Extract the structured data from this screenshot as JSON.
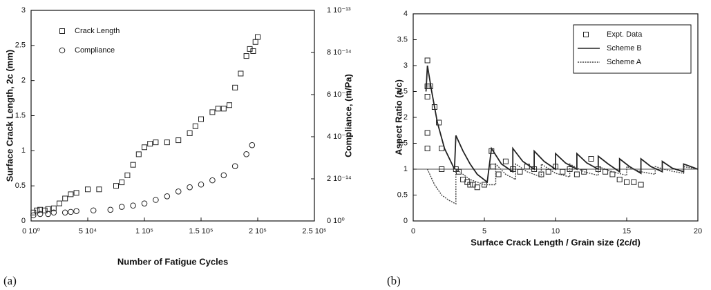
{
  "chart_data": [
    {
      "type": "scatter",
      "xlabel": "Number of Fatigue Cycles",
      "ylabel": "Surface Crack Length, 2c (mm)",
      "y2label": "Compliance, (m/Pa)",
      "caption": "(a)",
      "xlim": [
        0,
        250000
      ],
      "xticks": [
        {
          "value": 0,
          "label": "0 10⁰"
        },
        {
          "value": 50000,
          "label": "5 10⁴"
        },
        {
          "value": 100000,
          "label": "1 10⁵"
        },
        {
          "value": 150000,
          "label": "1.5 10⁵"
        },
        {
          "value": 200000,
          "label": "2 10⁵"
        },
        {
          "value": 250000,
          "label": "2.5 10⁵"
        }
      ],
      "ylim": [
        0,
        3
      ],
      "yticks": [
        0,
        0.5,
        1,
        1.5,
        2,
        2.5,
        3
      ],
      "y2lim": [
        0,
        1e-13
      ],
      "y2ticks": [
        {
          "value": 0,
          "label": "0 10⁰"
        },
        {
          "value": 2e-14,
          "label": "2 10⁻¹⁴"
        },
        {
          "value": 4e-14,
          "label": "4 10⁻¹⁴"
        },
        {
          "value": 6e-14,
          "label": "6 10⁻¹⁴"
        },
        {
          "value": 8e-14,
          "label": "8 10⁻¹⁴"
        },
        {
          "value": 1e-13,
          "label": "1 10⁻¹³"
        }
      ],
      "legend": "upper left",
      "series": [
        {
          "name": "Crack Length",
          "color": "#222222",
          "marker": "square",
          "x": [
            2000,
            5000,
            8000,
            12000,
            15000,
            20000,
            25000,
            30000,
            35000,
            40000,
            50000,
            60000,
            75000,
            80000,
            85000,
            90000,
            95000,
            100000,
            105000,
            110000,
            120000,
            130000,
            140000,
            145000,
            150000,
            160000,
            165000,
            170000,
            175000,
            180000,
            185000,
            190000,
            193000,
            196000,
            198000,
            200000
          ],
          "values": [
            0.12,
            0.15,
            0.16,
            0.15,
            0.17,
            0.18,
            0.25,
            0.32,
            0.38,
            0.4,
            0.45,
            0.45,
            0.5,
            0.55,
            0.65,
            0.8,
            0.95,
            1.05,
            1.1,
            1.12,
            1.12,
            1.15,
            1.25,
            1.35,
            1.45,
            1.55,
            1.6,
            1.6,
            1.65,
            1.9,
            2.1,
            2.35,
            2.45,
            2.42,
            2.55,
            2.62
          ]
        },
        {
          "name": "Compliance",
          "color": "#222222",
          "marker": "circle",
          "axis": "y2",
          "x": [
            2000,
            8000,
            15000,
            20000,
            30000,
            35000,
            40000,
            55000,
            70000,
            80000,
            90000,
            100000,
            110000,
            120000,
            130000,
            140000,
            150000,
            160000,
            170000,
            180000,
            190000,
            195000
          ],
          "values": [
            2.7e-15,
            3.3e-15,
            3.3e-15,
            4e-15,
            4e-15,
            4.3e-15,
            4.7e-15,
            5e-15,
            5.3e-15,
            6.7e-15,
            7.3e-15,
            8.3e-15,
            1e-14,
            1.17e-14,
            1.4e-14,
            1.6e-14,
            1.73e-14,
            1.93e-14,
            2.17e-14,
            2.6e-14,
            3.17e-14,
            3.6e-14
          ]
        }
      ]
    },
    {
      "type": "line",
      "xlabel": "Surface Crack Length / Grain size    (2c/d)",
      "ylabel": "Aspect Ratio   (a/c)",
      "caption": "(b)",
      "xlim": [
        0,
        20
      ],
      "xticks": [
        0,
        5,
        10,
        15,
        20
      ],
      "ylim": [
        0,
        4
      ],
      "yticks": [
        0,
        0.5,
        1,
        1.5,
        2,
        2.5,
        3,
        3.5,
        4
      ],
      "hline": 1,
      "legend": "upper right",
      "series": [
        {
          "name": "Expt. Data",
          "color": "#222222",
          "marker": "square",
          "x": [
            1,
            1,
            1,
            1,
            1,
            1.2,
            1.5,
            1.8,
            2,
            2,
            3,
            3.2,
            3.5,
            3.8,
            4,
            4.2,
            4.5,
            5,
            5.5,
            5.6,
            6,
            6.5,
            7,
            7.5,
            8,
            8.5,
            9,
            9.5,
            10,
            10.5,
            11,
            11.5,
            12,
            12.5,
            13,
            13.5,
            14,
            14.5,
            15,
            15.5,
            16
          ],
          "values": [
            3.1,
            2.6,
            2.4,
            1.7,
            1.4,
            2.6,
            2.2,
            1.9,
            1.4,
            1.0,
            1.0,
            0.95,
            0.8,
            0.75,
            0.7,
            0.7,
            0.65,
            0.7,
            1.35,
            1.05,
            0.9,
            1.15,
            1.0,
            0.95,
            1.05,
            1.0,
            0.9,
            0.95,
            1.05,
            0.95,
            1.0,
            0.9,
            0.95,
            1.2,
            1.0,
            0.95,
            0.9,
            0.8,
            0.75,
            0.75,
            0.7
          ]
        },
        {
          "name": "Scheme B",
          "color": "#222222",
          "dash": false,
          "x": [
            0.9,
            1,
            1.3,
            1.7,
            2.2,
            2.9,
            3,
            3.5,
            4,
            4.5,
            5.2,
            5.5,
            6.2,
            7,
            7,
            7.7,
            8.5,
            8.5,
            9.2,
            10,
            10,
            10.7,
            11.5,
            11.5,
            12.2,
            13,
            13,
            13.7,
            14.5,
            14.5,
            15.2,
            16,
            16,
            16.7,
            17.5,
            17.5,
            18.2,
            19,
            19,
            20
          ],
          "values": [
            2.5,
            3.0,
            2.5,
            1.9,
            1.4,
            1.0,
            1.65,
            1.35,
            1.1,
            0.9,
            0.75,
            1.4,
            1.1,
            0.95,
            1.4,
            1.15,
            1.0,
            1.35,
            1.15,
            1.0,
            1.3,
            1.12,
            1.0,
            1.3,
            1.12,
            1.0,
            1.25,
            1.1,
            0.95,
            1.2,
            1.05,
            0.92,
            1.2,
            1.05,
            0.95,
            1.15,
            1.02,
            0.95,
            1.1,
            1.0
          ]
        },
        {
          "name": "Scheme  A",
          "color": "#444444",
          "dash": true,
          "x": [
            1,
            1.5,
            2,
            2.5,
            3,
            3,
            4,
            5,
            5.8,
            5.8,
            6.5,
            7.2,
            7.2,
            8,
            9,
            9,
            10,
            11,
            11,
            12,
            13,
            13,
            14,
            15,
            15,
            16,
            17,
            17,
            18,
            19,
            19,
            20
          ],
          "values": [
            1.0,
            0.7,
            0.5,
            0.4,
            0.33,
            1.0,
            0.8,
            0.7,
            0.7,
            1.1,
            0.9,
            0.8,
            1.1,
            0.95,
            0.85,
            1.1,
            0.92,
            0.85,
            1.1,
            0.95,
            0.88,
            1.05,
            0.95,
            0.88,
            1.05,
            0.95,
            0.9,
            1.05,
            0.97,
            0.92,
            1.05,
            1.0
          ]
        }
      ]
    }
  ]
}
